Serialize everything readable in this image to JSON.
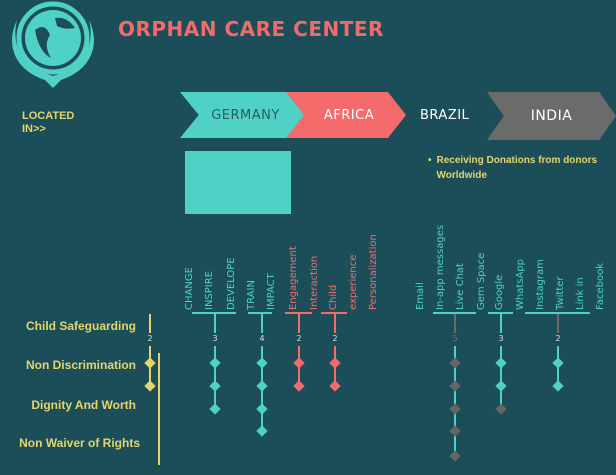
{
  "header": {
    "title": "ORPHAN CARE CENTER",
    "logo": "globe-wreath-emblem"
  },
  "located_in": "LOCATED IN>>",
  "locations": [
    "GERMANY",
    "AFRICA",
    "BRAZIL",
    "INDIA"
  ],
  "donation_note": "Receiving Donations from donors Worldwide",
  "colors": {
    "background": "#1c4e5a",
    "teal": "#4fd1c5",
    "red": "#f36b6b",
    "yellow": "#e3d56b",
    "gray": "#6b6b6b"
  },
  "rows": [
    "Child Safeguarding",
    "Non Discrimination",
    "Dignity And Worth",
    "Non Waiver of Rights"
  ],
  "groups": [
    {
      "labels": [],
      "count": "2",
      "color": "#e3d56b",
      "diamonds": [
        "#e3d56b",
        "#e3d56b"
      ]
    },
    {
      "labels": [
        "CHANGE",
        "INSPIRE",
        "DEVELOPE"
      ],
      "count": "3",
      "color": "#4fd1c5",
      "diamonds": [
        "#4fd1c5",
        "#4fd1c5",
        "#4fd1c5"
      ]
    },
    {
      "labels": [
        "TRAIN",
        "IMPACT"
      ],
      "count": "4",
      "color": "#4fd1c5",
      "diamonds": [
        "#4fd1c5",
        "#4fd1c5",
        "#4fd1c5",
        "#4fd1c5"
      ]
    },
    {
      "labels": [
        "Engagement",
        "Interaction"
      ],
      "count": "2",
      "color": "#f36b6b",
      "diamonds": [
        "#f36b6b",
        "#f36b6b"
      ]
    },
    {
      "labels": [
        "Child",
        "experience",
        "Personalization"
      ],
      "count": "2",
      "color": "#f36b6b",
      "diamonds": [
        "#f36b6b",
        "#f36b6b"
      ]
    },
    {
      "labels": [
        "Email",
        "In-app messages",
        "Live Chat",
        "Gem Space"
      ],
      "count": "5",
      "color": "#4fd1c5",
      "diamonds": [
        "#666",
        "#666",
        "#666",
        "#666",
        "#666"
      ]
    },
    {
      "labels": [
        "Google",
        "WhatsApp"
      ],
      "count": "3",
      "color": "#4fd1c5",
      "diamonds": [
        "#4fd1c5",
        "#4fd1c5",
        "#666"
      ]
    },
    {
      "labels": [
        "Instagram",
        "Twitter",
        "Link in",
        "Facebook"
      ],
      "count": "2",
      "color": "#4fd1c5",
      "diamonds": [
        "#4fd1c5",
        "#4fd1c5"
      ]
    }
  ]
}
